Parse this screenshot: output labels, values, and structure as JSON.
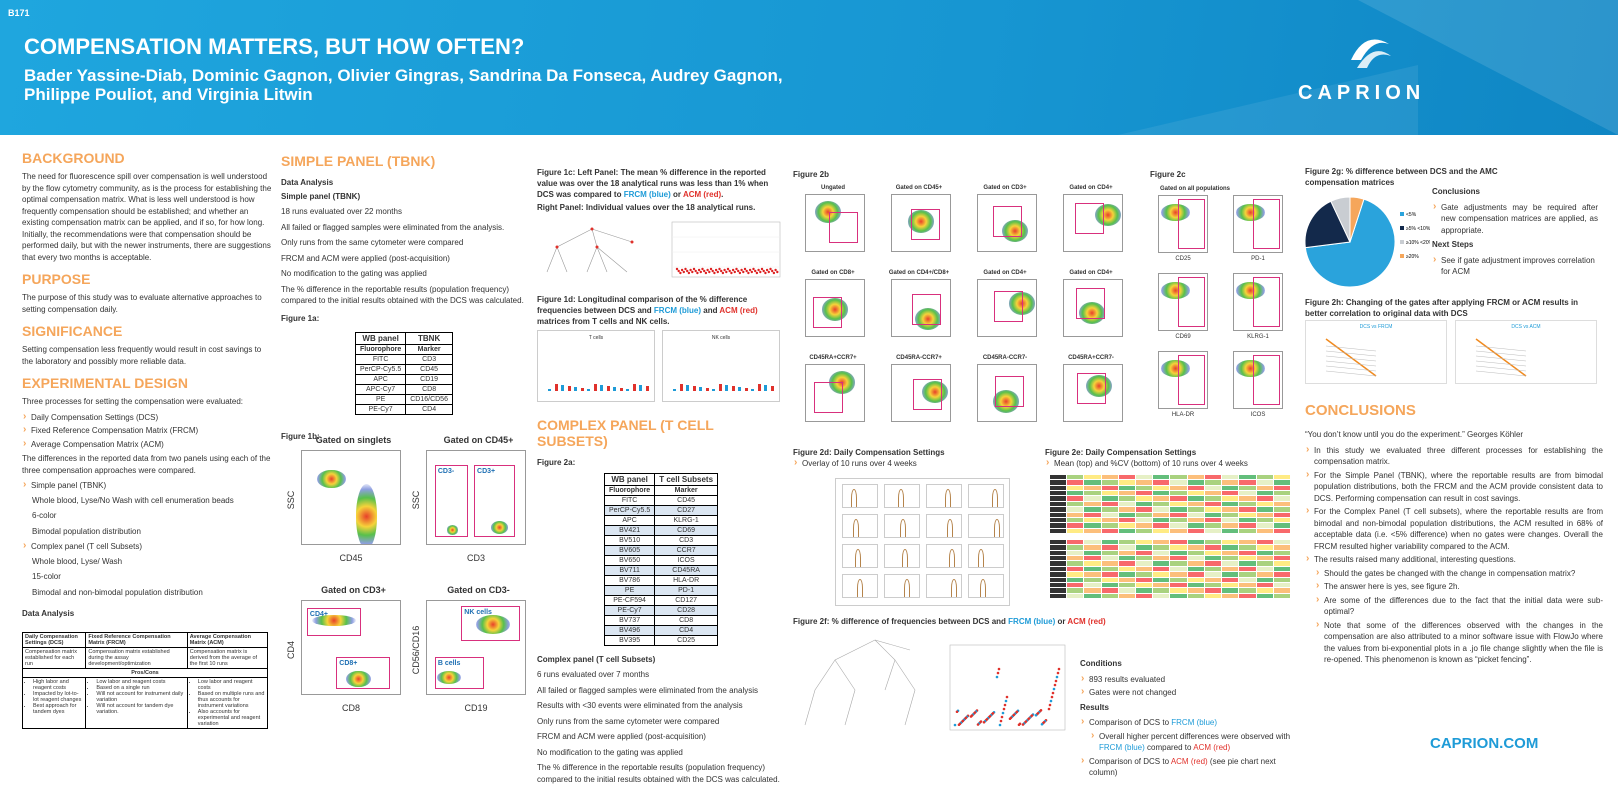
{
  "header": {
    "badge": "B171",
    "title": "COMPENSATION MATTERS, BUT HOW OFTEN?",
    "authors": "Bader Yassine-Diab, Dominic Gagnon, Olivier Gingras, Sandrina Da Fonseca, Audrey Gagnon, Philippe Pouliot, and Virginia Litwin",
    "logo": "CAPRION"
  },
  "background": {
    "heading": "BACKGROUND",
    "text": "The need for fluorescence spill over compensation is well understood by the flow cytometry community, as is the process for establishing the optimal compensation matrix. What is less well understood is how frequently compensation should be established; and whether an existing compensation matrix can be applied, and if so, for how long. Initially, the recommendations were that compensation should be performed daily, but with the newer instruments, there are suggestions that every two months is acceptable."
  },
  "purpose": {
    "heading": "PURPOSE",
    "text": "The purpose of this study was to evaluate alternative approaches to setting compensation daily."
  },
  "significance": {
    "heading": "SIGNIFICANCE",
    "text": "Setting compensation less frequently would result in cost savings to the laboratory and possibly more reliable data."
  },
  "design": {
    "heading": "EXPERIMENTAL DESIGN",
    "intro": "Three processes for setting the compensation were evaluated:",
    "processes": [
      "Daily Compensation Settings (DCS)",
      "Fixed Reference Compensation Matrix (FRCM)",
      "Average Compensation Matrix (ACM)"
    ],
    "text": "The differences in the reported data from two panels using each of the three compensation approaches were compared.",
    "panels": [
      {
        "name": "Simple panel (TBNK)",
        "details": [
          "Whole blood, Lyse/No Wash with cell enumeration beads",
          "6-color",
          "Bimodal population distribution"
        ]
      },
      {
        "name": "Complex panel (T cell Subsets)",
        "details": [
          "Whole blood, Lyse/ Wash",
          "15-color",
          "Bimodal and non-bimodal population distribution"
        ]
      }
    ],
    "data_analysis": "Data Analysis"
  },
  "comparison_table": {
    "header": [
      "Daily Compensation Settings (DCS)",
      "Fixed Reference Compensation Matrix (FRCM)",
      "Average Compensation Matrix (ACM)"
    ],
    "description": [
      "Compensation matrix established for each run",
      "Compensation matrix established during the assay development/optimization",
      "Compensation matrix is derived from the average of the first 10 runs"
    ],
    "subheader": "Pros/Cons",
    "pros_cons": [
      [
        "High labor and reagent costs",
        "Impacted by lot-to-lot reagent changes",
        "Best approach for tandem dyes"
      ],
      [
        "Low labor and reagent costs",
        "Based on a single run",
        "Will not account for instrument daily variation",
        "Will not account for tandem dye variation."
      ],
      [
        "Low labor and reagent costs",
        "Based on multiple runs and thus accounts for instrument variations",
        "Also accounts for experimental and reagent variation"
      ]
    ]
  },
  "simple_panel": {
    "heading": "SIMPLE PANEL (TBNK)",
    "subheading": "Data Analysis",
    "label": "Simple panel (TBNK)",
    "lines": [
      "18 runs evaluated over 22 months",
      "All failed or flagged samples were eliminated from the analysis.",
      "Only runs from the same cytometer were compared",
      "FRCM and ACM were applied (post-acquisition)",
      "No modification to the gating was applied",
      "The % difference in the reportable results (population frequency) compared to the initial results obtained with the DCS was calculated."
    ]
  },
  "figure_1a": {
    "label": "Figure 1a:",
    "table": {
      "header": [
        "WB panel",
        "TBNK"
      ],
      "rows": [
        [
          "Fluorophore",
          "Marker"
        ],
        [
          "FITC",
          "CD3"
        ],
        [
          "PerCP-Cy5.5",
          "CD45"
        ],
        [
          "APC",
          "CD19"
        ],
        [
          "APC-Cy7",
          "CD8"
        ],
        [
          "PE",
          "CD16/CD56"
        ],
        [
          "PE-Cy7",
          "CD4"
        ]
      ]
    }
  },
  "figure_1b": {
    "label": "Figure 1b:",
    "plots": [
      {
        "title": "Gated on singlets",
        "x": "CD45",
        "y": "SSC",
        "gates": []
      },
      {
        "title": "Gated on CD45+",
        "x": "CD3",
        "y": "SSC",
        "gates": [
          "CD3-",
          "CD3+"
        ]
      },
      {
        "title": "Gated on CD3+",
        "x": "CD8",
        "y": "CD4",
        "gates": [
          "CD4+",
          "CD8+"
        ]
      },
      {
        "title": "Gated on CD3-",
        "x": "CD19",
        "y": "CD56/CD16",
        "gates": [
          "NK cells",
          "B cells"
        ]
      }
    ]
  },
  "figure_1c": {
    "caption": [
      "Figure 1c: Left Panel: The mean % difference in the reported value was over the 18 analytical runs was less than 1% when DCS was compared to ",
      {
        "text": "FRCM (blue)",
        "color": "#1e9bd7"
      },
      " or ",
      {
        "text": "ACM (red)",
        "color": "#e0312b"
      },
      "."
    ],
    "right": "Right Panel: Individual values over the 18 analytical runs."
  },
  "figure_1d": {
    "caption": [
      "Figure 1d: Longitudinal comparison of the % difference frequencies between DCS and ",
      {
        "text": "FRCM (blue)",
        "color": "#1e9bd7"
      },
      " and ",
      {
        "text": "ACM (red)",
        "color": "#e0312b"
      },
      " matrices from T cells and NK cells."
    ],
    "panels": [
      "T cells",
      "NK cells"
    ]
  },
  "complex_panel": {
    "heading": "COMPLEX PANEL (T CELL SUBSETS)",
    "label": "Complex panel (T cell Subsets)",
    "lines": [
      "6 runs evaluated over 7 months",
      "All failed or flagged samples were eliminated from the analysis",
      "Results with <30 events were eliminated from the analysis",
      "Only runs from the same cytometer were compared",
      "FRCM and ACM were applied (post-acquisition)",
      "No modification to the gating was applied",
      "The % difference in the reportable results (population frequency) compared to the initial results obtained with the DCS was calculated."
    ]
  },
  "figure_2a": {
    "label": "Figure 2a:",
    "table": {
      "header": [
        "WB panel",
        "T cell Subsets"
      ],
      "rows": [
        [
          "Fluorophore",
          "Marker"
        ],
        [
          "FITC",
          "CD45"
        ],
        [
          "PerCP-Cy5.5",
          "CD27"
        ],
        [
          "APC",
          "KLRG-1"
        ],
        [
          "BV421",
          "CD69"
        ],
        [
          "BV510",
          "CD3"
        ],
        [
          "BV605",
          "CCR7"
        ],
        [
          "BV650",
          "ICOS"
        ],
        [
          "BV711",
          "CD45RA"
        ],
        [
          "BV786",
          "HLA-DR"
        ],
        [
          "PE",
          "PD-1"
        ],
        [
          "PE-CF594",
          "CD127"
        ],
        [
          "PE-Cy7",
          "CD28"
        ],
        [
          "BV737",
          "CD8"
        ],
        [
          "BV496",
          "CD4"
        ],
        [
          "BV395",
          "CD25"
        ]
      ]
    }
  },
  "figure_2b": {
    "label": "Figure 2b",
    "plots": [
      "Ungated",
      "Gated on CD45+",
      "Gated on CD3+",
      "Gated on CD4+",
      "Gated on CD8+",
      "Gated on CD4+/CD8+",
      "Gated on CD4+",
      "Gated on CD4+",
      "CD45RA+CCR7+",
      "CD45RA-CCR7+",
      "CD45RA-CCR7-",
      "CD45RA+CCR7-"
    ]
  },
  "figure_2c": {
    "label": "Figure 2c",
    "subtitle": "Gated on all populations",
    "plots": [
      "CD25",
      "PD-1",
      "CD69",
      "KLRG-1",
      "HLA-DR",
      "ICOS"
    ]
  },
  "figure_2d": {
    "label": "Figure 2d: Daily Compensation Settings",
    "note": "Overlay of 10 runs over 4 weeks"
  },
  "figure_2e": {
    "label": "Figure 2e: Daily Compensation Settings",
    "note": "Mean (top) and %CV (bottom) of 10 runs over 4 weeks"
  },
  "figure_2f": {
    "caption": [
      "Figure 2f: % difference of frequencies between DCS and ",
      {
        "text": "FRCM (blue)",
        "color": "#1e9bd7"
      },
      " or ",
      {
        "text": "ACM (red)",
        "color": "#e0312b"
      }
    ]
  },
  "conditions": {
    "heading": "Conditions",
    "items": [
      "893 results evaluated",
      "Gates were not changed"
    ],
    "results_heading": "Results",
    "results": [
      [
        "Comparison of DCS to ",
        {
          "text": "FRCM (blue)",
          "color": "#1e9bd7"
        }
      ],
      [
        "Overall higher percent differences were observed with ",
        {
          "text": "FRCM (blue)",
          "color": "#1e9bd7"
        },
        " compared to ",
        {
          "text": "ACM (red)",
          "color": "#e0312b"
        }
      ],
      [
        "Comparison of DCS to ",
        {
          "text": "ACM (red)",
          "color": "#e0312b"
        },
        " (see pie chart next column)"
      ]
    ]
  },
  "figure_2g": {
    "caption": "Figure 2g: % difference between DCS and the AMC compensation matrices",
    "pie": {
      "labels": [
        "<5%",
        "≥5% <10%",
        "≥10% <20%",
        "≥20%"
      ],
      "values": [
        68,
        20,
        7,
        5
      ],
      "colors": [
        "#2aa3dc",
        "#13294b",
        "#c9cdd2",
        "#f5a65b"
      ]
    }
  },
  "side_conclusions": {
    "heading": "Conclusions",
    "text": "Gate adjustments may be required after new compensation matrices are applied, as appropriate.",
    "next_heading": "Next Steps",
    "next": "See if gate adjustment improves correlation for ACM"
  },
  "figure_2h": {
    "caption": "Figure 2h: Changing of the gates after applying FRCM or ACM results in better correlation to original data with DCS",
    "panels": [
      "DCS vs FRCM",
      "DCS vs ACM"
    ]
  },
  "conclusions": {
    "heading": "CONCLUSIONS",
    "quote": "“You don’t know until you do the experiment.” Georges Köhler",
    "items": [
      "In this study we evaluated three different processes for establishing the compensation matrix.",
      "For the Simple Panel (TBNK), where the reportable results are from bimodal population distributions, both the FRCM and the ACM provide consistent data to DCS. Performing compensation can result in cost savings.",
      "For the Complex Panel (T cell subsets), where the reportable results are from bimodal and non-bimodal population distributions, the ACM resulted in 68% of acceptable data (i.e. <5% difference) when no gates were changes. Overall the FRCM resulted higher variability compared to the ACM.",
      "The results raised many additional, interesting questions."
    ],
    "sub_items": [
      "Should the gates be changed with the change in compensation matrix?",
      "The answer here is yes, see figure 2h.",
      "Are some of the differences due to the fact that the initial data were sub-optimal?",
      "Note that some of the differences observed with the changes in the compensation are also attributed to a minor software issue with FlowJo where the values from bi-exponential plots in a .jo file change slightly when the file is re-opened. This phenomenon is known as “picket fencing”."
    ]
  },
  "footer": {
    "url": "CAPRION.COM"
  }
}
